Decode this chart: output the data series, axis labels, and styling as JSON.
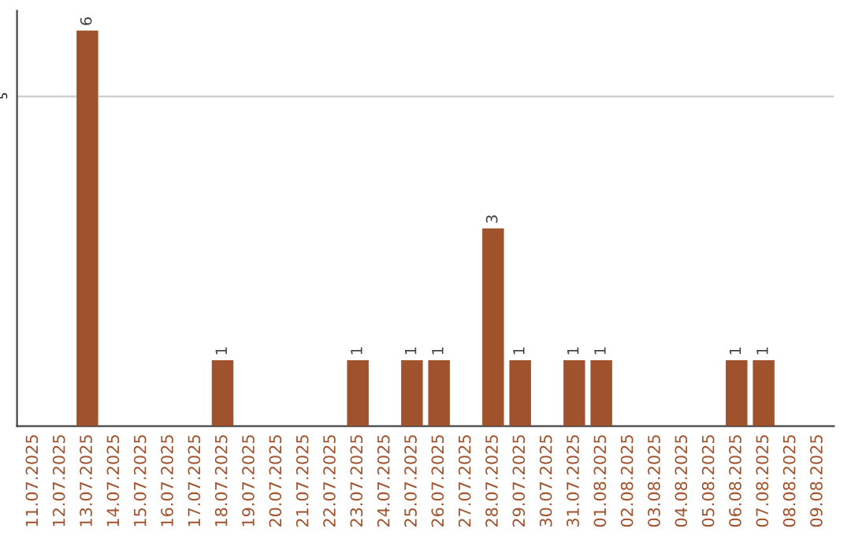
{
  "chart_data": {
    "type": "bar",
    "categories": [
      "11.07.2025",
      "12.07.2025",
      "13.07.2025",
      "14.07.2025",
      "15.07.2025",
      "16.07.2025",
      "17.07.2025",
      "18.07.2025",
      "19.07.2025",
      "20.07.2025",
      "21.07.2025",
      "22.07.2025",
      "23.07.2025",
      "24.07.2025",
      "25.07.2025",
      "26.07.2025",
      "27.07.2025",
      "28.07.2025",
      "29.07.2025",
      "30.07.2025",
      "31.07.2025",
      "01.08.2025",
      "02.08.2025",
      "03.08.2025",
      "04.08.2025",
      "05.08.2025",
      "06.08.2025",
      "07.08.2025",
      "08.08.2025",
      "09.08.2025"
    ],
    "values": [
      0,
      0,
      6,
      0,
      0,
      0,
      0,
      1,
      0,
      0,
      0,
      0,
      1,
      0,
      1,
      1,
      0,
      3,
      1,
      0,
      1,
      1,
      0,
      0,
      0,
      0,
      1,
      1,
      0,
      0
    ],
    "value_labels": [
      null,
      null,
      "6",
      null,
      null,
      null,
      null,
      "1",
      null,
      null,
      null,
      null,
      "1",
      null,
      "1",
      "1",
      null,
      "3",
      "1",
      null,
      "1",
      "1",
      null,
      null,
      null,
      null,
      "1",
      "1",
      null,
      null
    ],
    "color": "#a0522d",
    "ylim": [
      0,
      6.3
    ],
    "yticks": [
      5
    ],
    "grid": "y"
  }
}
